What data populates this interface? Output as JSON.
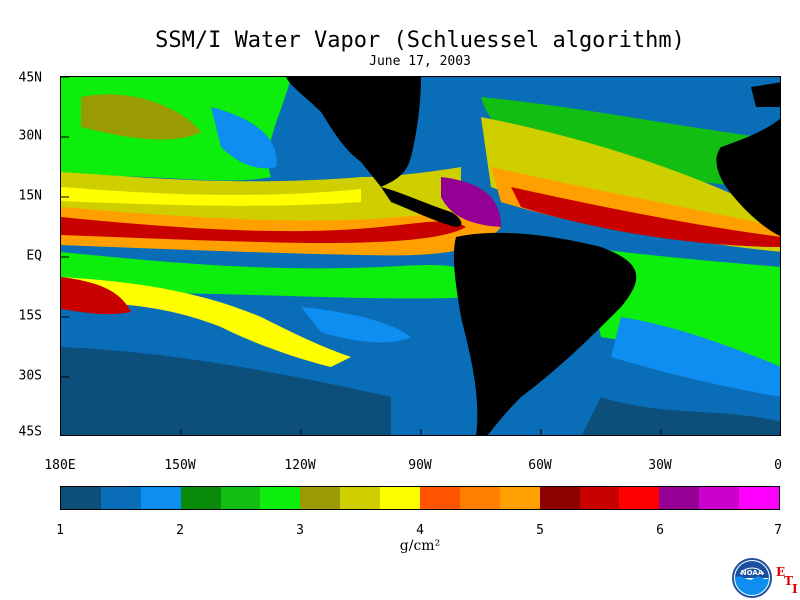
{
  "map": {
    "title": "SSM/I Water Vapor (Schluessel algorithm)",
    "subtitle": "June 17, 2003",
    "lat_labels": [
      "45N",
      "30N",
      "15N",
      "EQ",
      "15S",
      "30S",
      "45S"
    ],
    "lon_labels": [
      "180E",
      "150W",
      "120W",
      "90W",
      "60W",
      "30W",
      "0"
    ]
  },
  "colorbar": {
    "colors": [
      "#0b4f7a",
      "#0a6db7",
      "#0d8ef0",
      "#0a8a0a",
      "#12be12",
      "#0dee0d",
      "#9a9a05",
      "#cfcf00",
      "#ffff00",
      "#ff5500",
      "#ff8000",
      "#ffa000",
      "#8c0000",
      "#c80000",
      "#ff0000",
      "#930093",
      "#cc00cc",
      "#ff00ff"
    ],
    "tick_labels": [
      "1",
      "2",
      "3",
      "4",
      "5",
      "6",
      "7"
    ],
    "units": "g/cm²"
  },
  "logo": {
    "name": "NOAA",
    "mark": [
      "E",
      "T",
      "I"
    ]
  }
}
